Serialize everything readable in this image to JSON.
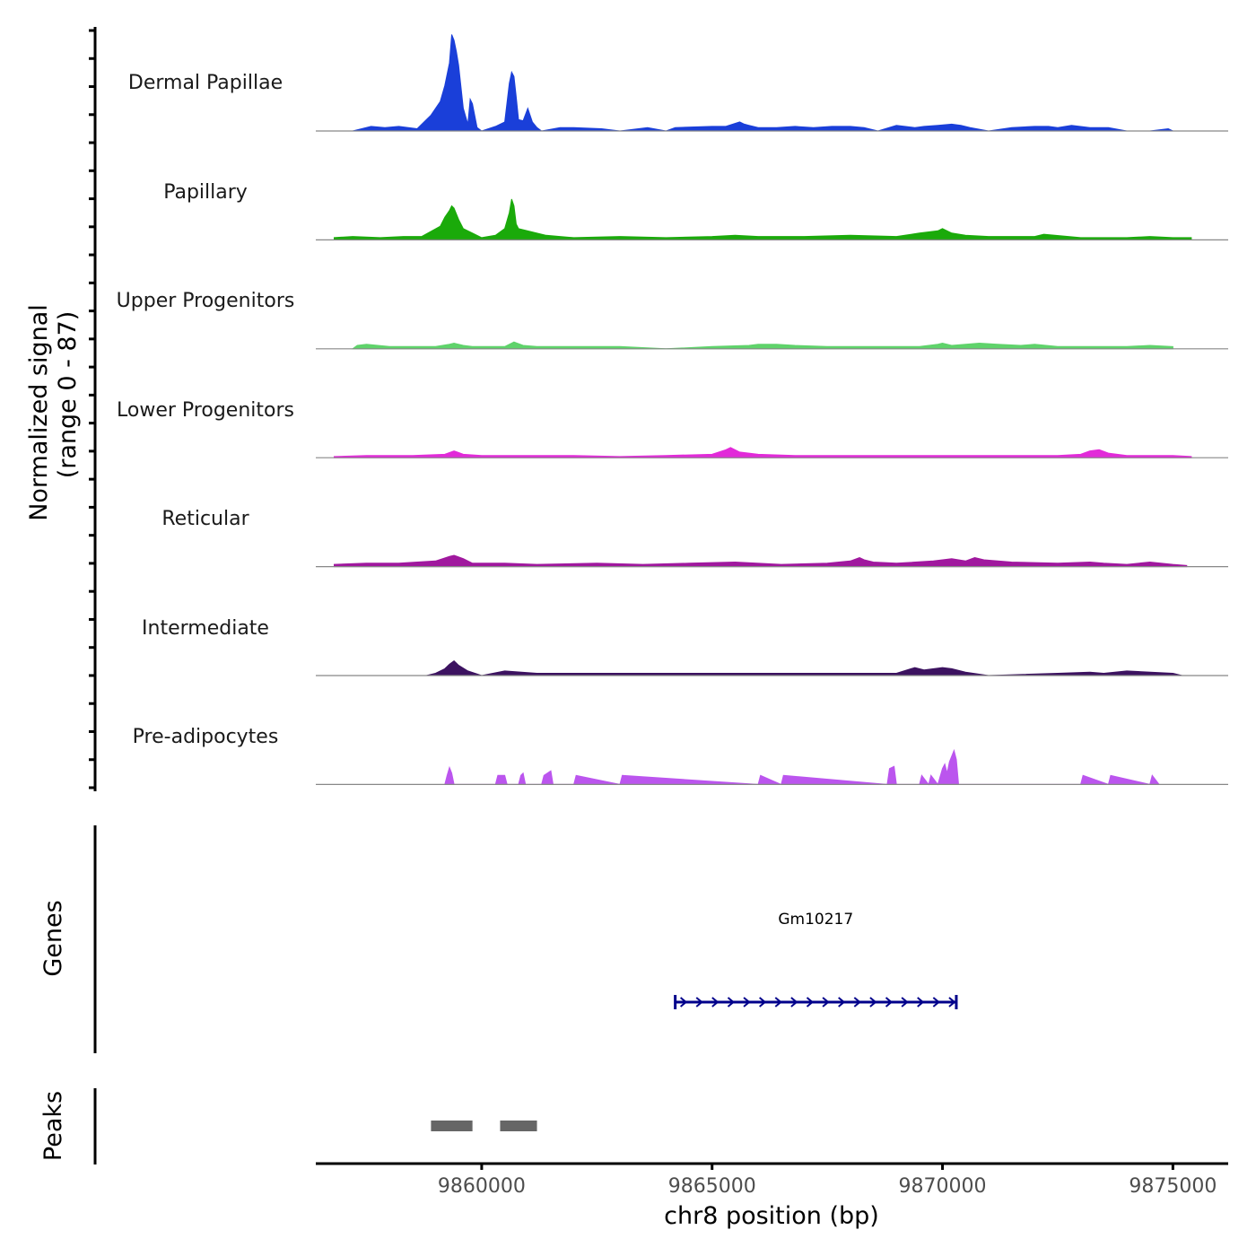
{
  "chart_data": {
    "type": "area",
    "title": "",
    "ylabel_line1": "Normalized signal",
    "ylabel_line2": "(range 0 - 87)",
    "xlabel": "chr8 position (bp)",
    "ylim": [
      0,
      87
    ],
    "xlim": [
      9856400,
      9876200
    ],
    "x_ticks": [
      9860000,
      9865000,
      9870000,
      9875000
    ],
    "x_tick_labels": [
      "9860000",
      "9865000",
      "9870000",
      "9875000"
    ],
    "tracks": [
      {
        "name": "Dermal Papillae",
        "color": "#1a3fd9",
        "x": [
          9857200,
          9857600,
          9857900,
          9858200,
          9858600,
          9858900,
          9859100,
          9859200,
          9859300,
          9859350,
          9859400,
          9859450,
          9859500,
          9859600,
          9859700,
          9859750,
          9859800,
          9859900,
          9860000,
          9860300,
          9860500,
          9860600,
          9860650,
          9860700,
          9860750,
          9860800,
          9860900,
          9861000,
          9861100,
          9861200,
          9861300,
          9861700,
          9862000,
          9862600,
          9863000,
          9863600,
          9864000,
          9864200,
          9865000,
          9865300,
          9865600,
          9865700,
          9865800,
          9866000,
          9866400,
          9866800,
          9867200,
          9867600,
          9868000,
          9868300,
          9868600,
          9869000,
          9869400,
          9869600,
          9869900,
          9870200,
          9870400,
          9870600,
          9871000,
          9871500,
          9872000,
          9872300,
          9872500,
          9872800,
          9873200,
          9873600,
          9874000,
          9874500,
          9874900,
          9875000,
          9875200
        ],
        "values": [
          0,
          4,
          3,
          4,
          2,
          14,
          26,
          40,
          60,
          85,
          80,
          70,
          58,
          20,
          6,
          28,
          24,
          3,
          0,
          4,
          8,
          42,
          52,
          48,
          30,
          10,
          9,
          20,
          8,
          3,
          0,
          3,
          3,
          2,
          0,
          3,
          0,
          3,
          4,
          4,
          8,
          6,
          5,
          3,
          3,
          4,
          3,
          4,
          4,
          3,
          0,
          5,
          3,
          4,
          5,
          6,
          5,
          3,
          0,
          3,
          4,
          4,
          3,
          5,
          3,
          3,
          0,
          0,
          2,
          0,
          0
        ]
      },
      {
        "name": "Papillary",
        "color": "#1aaa0a",
        "x": [
          9856800,
          9857200,
          9857800,
          9858300,
          9858700,
          9859100,
          9859200,
          9859300,
          9859350,
          9859400,
          9859500,
          9859600,
          9859800,
          9860000,
          9860300,
          9860500,
          9860600,
          9860650,
          9860700,
          9860750,
          9860800,
          9861000,
          9861200,
          9861400,
          9861700,
          9862000,
          9863000,
          9864000,
          9865000,
          9865500,
          9866000,
          9867000,
          9868000,
          9869000,
          9869500,
          9869900,
          9870000,
          9870200,
          9870500,
          9871000,
          9871500,
          9872000,
          9872200,
          9873000,
          9874000,
          9874500,
          9875000,
          9875400
        ],
        "values": [
          2,
          3,
          2,
          3,
          3,
          12,
          20,
          26,
          30,
          28,
          18,
          10,
          6,
          2,
          4,
          10,
          24,
          36,
          30,
          14,
          10,
          8,
          6,
          4,
          3,
          2,
          3,
          2,
          3,
          4,
          3,
          3,
          4,
          3,
          6,
          8,
          10,
          6,
          4,
          3,
          3,
          3,
          5,
          2,
          2,
          3,
          2,
          2
        ]
      },
      {
        "name": "Upper Progenitors",
        "color": "#5fd36b",
        "x": [
          9857200,
          9857300,
          9857500,
          9858000,
          9859000,
          9859300,
          9859400,
          9859600,
          9859800,
          9860500,
          9860700,
          9860900,
          9861200,
          9862000,
          9863000,
          9864000,
          9865000,
          9865800,
          9866000,
          9866400,
          9866800,
          9867500,
          9868500,
          9869500,
          9869900,
          9870000,
          9870200,
          9870500,
          9870800,
          9871200,
          9871700,
          9872000,
          9872500,
          9873000,
          9874000,
          9874500,
          9875000
        ],
        "values": [
          0,
          3,
          4,
          2,
          2,
          4,
          5,
          3,
          2,
          2,
          6,
          3,
          2,
          2,
          2,
          0,
          2,
          3,
          4,
          4,
          3,
          2,
          2,
          2,
          4,
          5,
          3,
          4,
          5,
          4,
          3,
          4,
          2,
          2,
          2,
          3,
          2
        ]
      },
      {
        "name": "Lower Progenitors",
        "color": "#e22ad9",
        "x": [
          9856800,
          9857500,
          9858500,
          9859200,
          9859400,
          9859600,
          9860000,
          9861000,
          9862000,
          9863000,
          9864000,
          9865000,
          9865300,
          9865400,
          9865600,
          9866000,
          9866800,
          9867500,
          9868500,
          9869500,
          9870500,
          9871500,
          9872500,
          9873000,
          9873200,
          9873400,
          9873600,
          9874000,
          9875000,
          9875400
        ],
        "values": [
          1,
          2,
          2,
          3,
          6,
          3,
          2,
          2,
          2,
          1,
          2,
          3,
          7,
          9,
          5,
          3,
          2,
          2,
          2,
          2,
          2,
          2,
          2,
          3,
          6,
          7,
          4,
          2,
          2,
          1
        ]
      },
      {
        "name": "Reticular",
        "color": "#a0189e",
        "x": [
          9856800,
          9857500,
          9858200,
          9859000,
          9859300,
          9859400,
          9859600,
          9859800,
          9860500,
          9861200,
          9862500,
          9863500,
          9864500,
          9865500,
          9866500,
          9867500,
          9868000,
          9868200,
          9868300,
          9868500,
          9869000,
          9869800,
          9870200,
          9870500,
          9870700,
          9870900,
          9871500,
          9872500,
          9873200,
          9873500,
          9874000,
          9874500,
          9875000,
          9875300
        ],
        "values": [
          2,
          3,
          3,
          5,
          9,
          10,
          7,
          3,
          3,
          2,
          3,
          2,
          3,
          4,
          2,
          3,
          5,
          8,
          6,
          4,
          3,
          5,
          7,
          5,
          8,
          6,
          4,
          3,
          4,
          3,
          2,
          4,
          2,
          1
        ]
      },
      {
        "name": "Intermediate",
        "color": "#3c1260",
        "x": [
          9858800,
          9859000,
          9859200,
          9859300,
          9859400,
          9859500,
          9859700,
          9860000,
          9860500,
          9861200,
          9862000,
          9863000,
          9864000,
          9865000,
          9866000,
          9867000,
          9868000,
          9869000,
          9869400,
          9869600,
          9870000,
          9870200,
          9870500,
          9871000,
          9872500,
          9873200,
          9873500,
          9874000,
          9875000,
          9875200
        ],
        "values": [
          0,
          2,
          6,
          10,
          13,
          9,
          4,
          0,
          4,
          2,
          2,
          2,
          2,
          2,
          2,
          2,
          2,
          2,
          7,
          5,
          7,
          6,
          3,
          0,
          2,
          3,
          2,
          4,
          2,
          0
        ]
      },
      {
        "name": "Pre-adipocytes",
        "color": "#bb55ee",
        "x": [
          9859200,
          9859250,
          9859300,
          9859350,
          9859400,
          9860300,
          9860350,
          9860500,
          9860550,
          9860800,
          9860850,
          9860900,
          9860950,
          9861300,
          9861350,
          9861500,
          9861550,
          9862000,
          9862050,
          9863000,
          9863050,
          9866000,
          9866050,
          9866500,
          9866550,
          9868800,
          9868850,
          9868950,
          9869000,
          9869500,
          9869550,
          9869700,
          9869750,
          9869900,
          9870000,
          9870050,
          9870100,
          9870150,
          9870250,
          9870300,
          9870350,
          9873000,
          9873050,
          9873600,
          9873650,
          9874500,
          9874550,
          9874700
        ],
        "values": [
          0,
          8,
          15,
          10,
          0,
          0,
          8,
          8,
          0,
          0,
          8,
          10,
          0,
          0,
          8,
          12,
          0,
          0,
          8,
          0,
          8,
          0,
          8,
          0,
          8,
          0,
          14,
          16,
          0,
          0,
          8,
          0,
          8,
          0,
          14,
          18,
          10,
          20,
          30,
          22,
          0,
          0,
          8,
          0,
          8,
          0,
          8,
          0
        ]
      }
    ],
    "genes": [
      {
        "name": "Gm10217",
        "start": 9864200,
        "end": 9870300,
        "strand": "+",
        "color": "#00008b"
      }
    ],
    "peaks": [
      {
        "start": 9858900,
        "end": 9859800
      },
      {
        "start": 9860400,
        "end": 9861200
      }
    ],
    "peak_color": "#666666",
    "panel_labels": {
      "genes": "Genes",
      "peaks": "Peaks"
    }
  }
}
